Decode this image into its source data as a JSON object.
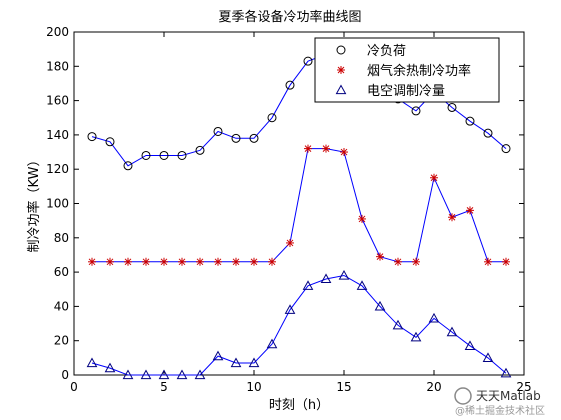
{
  "chart_data": {
    "type": "line",
    "title": "夏季各设备冷功率曲线图",
    "xlabel": "时刻（h）",
    "ylabel": "制冷功率（KW）",
    "xlim": [
      0,
      25
    ],
    "ylim": [
      0,
      200
    ],
    "xticks": [
      0,
      5,
      10,
      15,
      20,
      25
    ],
    "yticks": [
      0,
      20,
      40,
      60,
      80,
      100,
      120,
      140,
      160,
      180,
      200
    ],
    "legend_position": "top-right",
    "grid": false,
    "series": [
      {
        "name": "冷负荷",
        "marker": "circle",
        "color": "#0000ff",
        "marker_color": "#000000",
        "x": [
          1,
          2,
          3,
          4,
          5,
          6,
          7,
          8,
          9,
          10,
          11,
          12,
          13,
          14,
          15,
          16,
          17,
          18,
          19,
          20,
          21,
          22,
          23,
          24
        ],
        "y": [
          139,
          136,
          122,
          128,
          128,
          128,
          131,
          142,
          138,
          138,
          150,
          169,
          183,
          187,
          183,
          176,
          168,
          161,
          154,
          165,
          156,
          148,
          141,
          132
        ]
      },
      {
        "name": "烟气余热制冷功率",
        "marker": "star",
        "color": "#0000ff",
        "marker_color": "#cc0000",
        "x": [
          1,
          2,
          3,
          4,
          5,
          6,
          7,
          8,
          9,
          10,
          11,
          12,
          13,
          14,
          15,
          16,
          17,
          18,
          19,
          20,
          21,
          22,
          23,
          24
        ],
        "y": [
          66,
          66,
          66,
          66,
          66,
          66,
          66,
          66,
          66,
          66,
          66,
          77,
          132,
          132,
          130,
          91,
          69,
          66,
          66,
          115,
          92,
          96,
          66,
          66
        ]
      },
      {
        "name": "电空调制冷量",
        "marker": "triangle",
        "color": "#0000ff",
        "marker_color": "#000080",
        "x": [
          1,
          2,
          3,
          4,
          5,
          6,
          7,
          8,
          9,
          10,
          11,
          12,
          13,
          14,
          15,
          16,
          17,
          18,
          19,
          20,
          21,
          22,
          23,
          24
        ],
        "y": [
          7,
          4,
          0,
          0,
          0,
          0,
          0,
          11,
          7,
          7,
          18,
          38,
          52,
          56,
          58,
          52,
          40,
          29,
          22,
          33,
          25,
          17,
          10,
          1
        ]
      }
    ]
  },
  "watermark": {
    "brand": "天天Matlab",
    "sub": "@稀土掘金技术社区"
  }
}
